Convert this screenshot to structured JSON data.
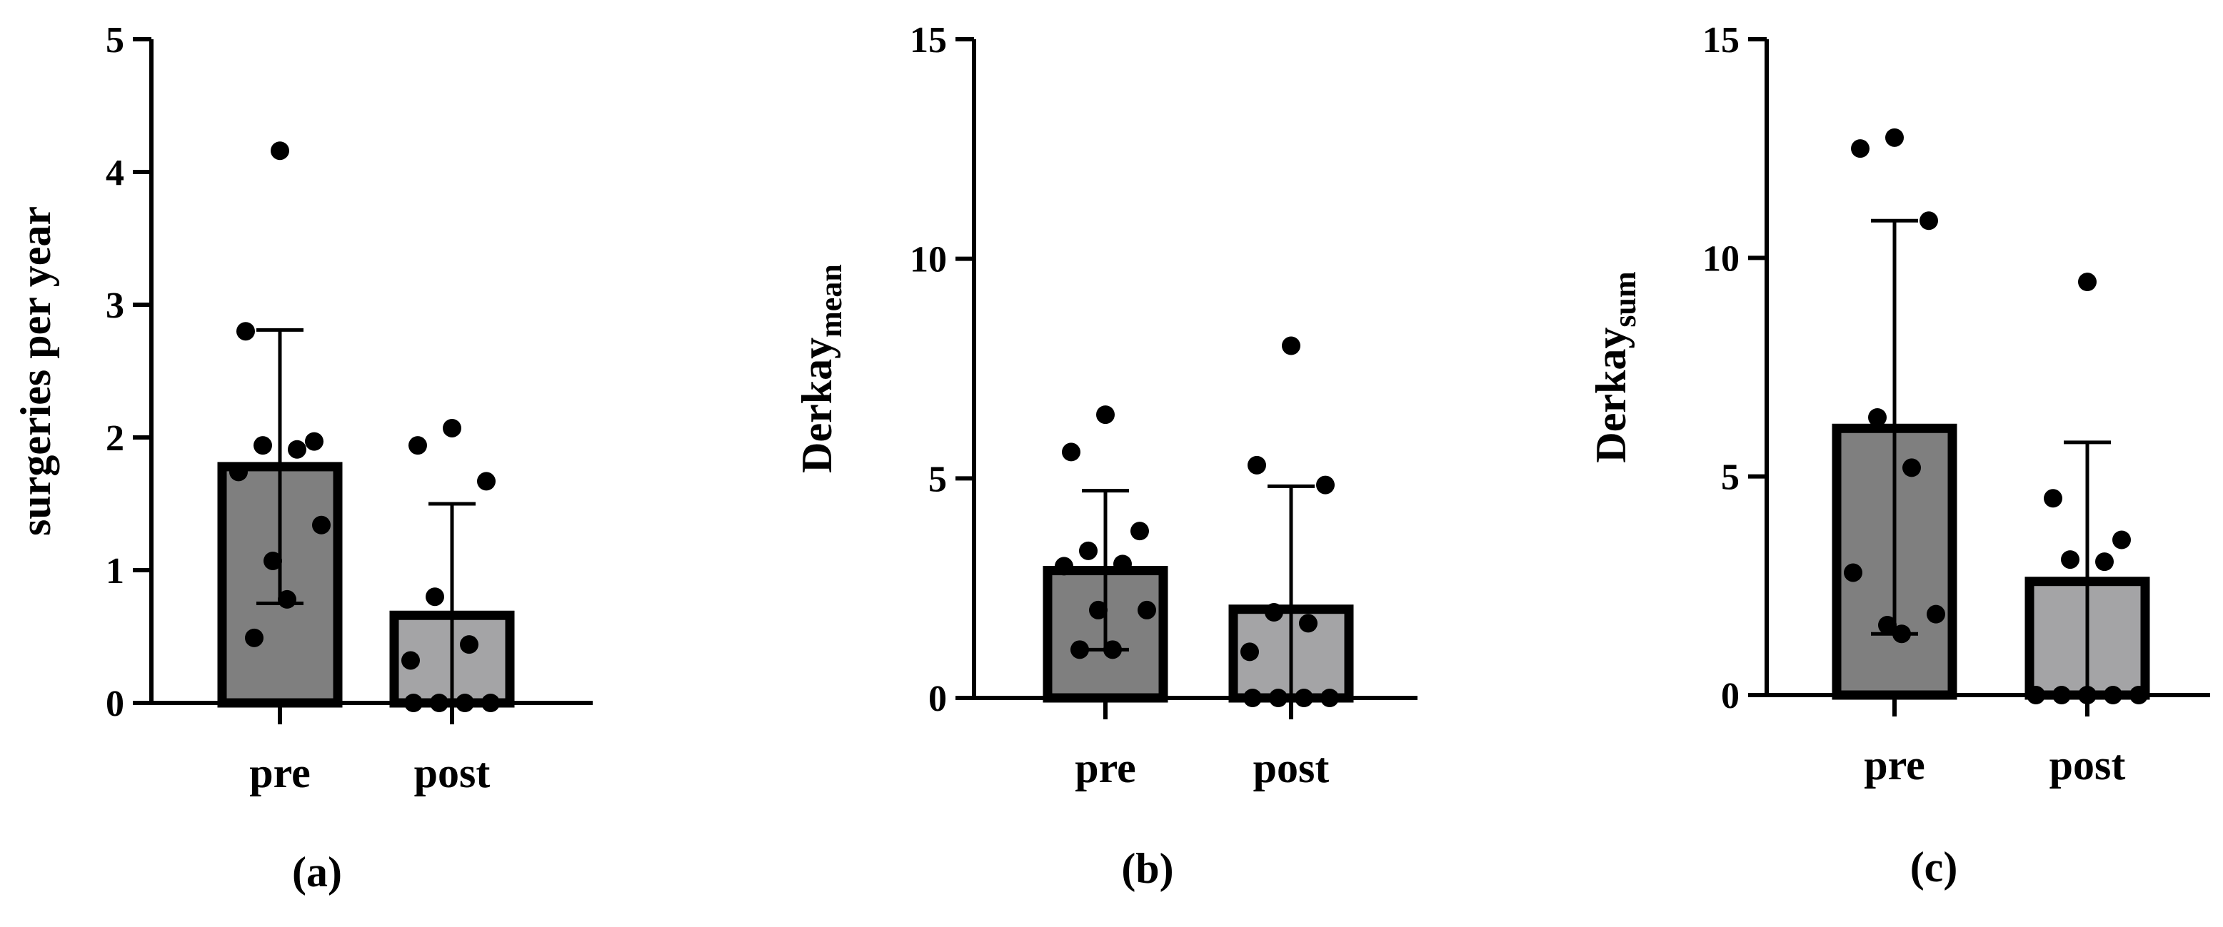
{
  "colors": {
    "pre_bar": "#7f7f7f",
    "post_bar": "#a4a4a6",
    "ink": "#000000",
    "background": "#ffffff"
  },
  "chart_data": [
    {
      "type": "bar",
      "panel": "(a)",
      "ylabel": "surgeries per year",
      "ylabel_sub": "",
      "ylim": [
        0,
        5
      ],
      "yticks": [
        0,
        1,
        2,
        3,
        4,
        5
      ],
      "categories": [
        "pre",
        "post"
      ],
      "bars": [
        {
          "category": "pre",
          "mean": 1.78,
          "error_low": 0.75,
          "error_high": 2.81,
          "points": [
            4.16,
            2.8,
            1.97,
            1.94,
            1.91,
            1.74,
            1.34,
            1.07,
            0.78,
            0.49
          ]
        },
        {
          "category": "post",
          "mean": 0.66,
          "error_low": 0.0,
          "error_high": 1.5,
          "points": [
            2.07,
            1.94,
            1.67,
            0.8,
            0.44,
            0.32,
            0.0,
            0.0,
            0.0,
            0.0
          ]
        }
      ],
      "grid": false,
      "legend": "none"
    },
    {
      "type": "bar",
      "panel": "(b)",
      "ylabel": "Derkay",
      "ylabel_sub": "mean",
      "ylim": [
        0,
        15
      ],
      "yticks": [
        0,
        5,
        10,
        15
      ],
      "categories": [
        "pre",
        "post"
      ],
      "bars": [
        {
          "category": "pre",
          "mean": 2.9,
          "error_low": 1.1,
          "error_high": 4.72,
          "points": [
            6.45,
            5.6,
            3.8,
            3.35,
            3.05,
            3.0,
            2.0,
            2.0,
            1.1,
            1.1
          ]
        },
        {
          "category": "post",
          "mean": 2.02,
          "error_low": 0.0,
          "error_high": 4.82,
          "points": [
            8.02,
            5.3,
            4.85,
            1.95,
            1.7,
            1.05,
            0.0,
            0.0,
            0.0,
            0.0
          ]
        }
      ],
      "grid": false,
      "legend": "none"
    },
    {
      "type": "bar",
      "panel": "(c)",
      "ylabel": "Derkay",
      "ylabel_sub": "sum",
      "ylim": [
        0,
        15
      ],
      "yticks": [
        0,
        5,
        10,
        15
      ],
      "categories": [
        "pre",
        "post"
      ],
      "bars": [
        {
          "category": "pre",
          "mean": 6.1,
          "error_low": 1.4,
          "error_high": 10.85,
          "points": [
            12.75,
            12.5,
            10.85,
            6.35,
            5.2,
            2.8,
            1.85,
            1.6,
            1.4
          ]
        },
        {
          "category": "post",
          "mean": 2.6,
          "error_low": 0.0,
          "error_high": 5.78,
          "points": [
            9.45,
            4.5,
            3.55,
            3.1,
            3.05,
            0.0,
            0.0,
            0.0,
            0.0,
            0.0
          ]
        }
      ],
      "grid": false,
      "legend": "none"
    }
  ]
}
